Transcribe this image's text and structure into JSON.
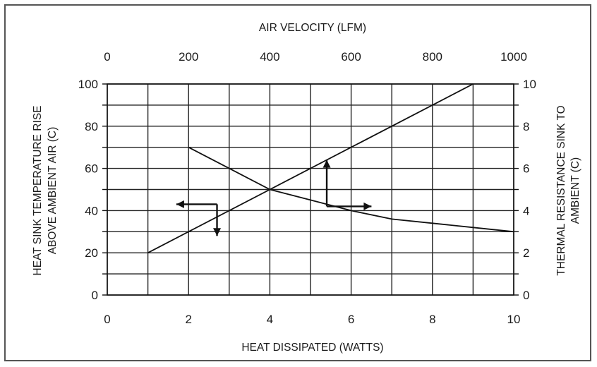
{
  "chart_data": {
    "type": "line",
    "x_bottom": {
      "label": "HEAT DISSIPATED (WATTS)",
      "range": [
        0,
        10
      ],
      "ticks": [
        0,
        2,
        4,
        6,
        8,
        10
      ]
    },
    "x_top": {
      "label": "AIR VELOCITY (LFM)",
      "range": [
        0,
        1000
      ],
      "ticks": [
        0,
        200,
        400,
        600,
        800,
        1000
      ]
    },
    "y_left": {
      "label_line1": "HEAT SINK TEMPERATURE RISE",
      "label_line2": "ABOVE AMBIENT AIR (C)",
      "range": [
        0,
        100
      ],
      "ticks": [
        0,
        20,
        40,
        60,
        80,
        100
      ]
    },
    "y_right": {
      "label_line1": "THERMAL RESISTANCE SINK TO",
      "label_line2": "AMBIENT (C)",
      "range": [
        0,
        10
      ],
      "ticks": [
        0,
        2,
        4,
        6,
        8,
        10
      ]
    },
    "grid": true,
    "series": [
      {
        "x_axis": "bottom",
        "y_axis": "left",
        "points": [
          [
            1,
            20
          ],
          [
            9,
            100
          ]
        ],
        "arrows": "points-left-and-down"
      },
      {
        "x_axis": "top",
        "y_axis": "right",
        "points": [
          [
            200,
            7.0
          ],
          [
            300,
            6.0
          ],
          [
            400,
            5.0
          ],
          [
            500,
            4.5
          ],
          [
            600,
            4.0
          ],
          [
            700,
            3.6
          ],
          [
            800,
            3.4
          ],
          [
            900,
            3.2
          ],
          [
            1000,
            3.0
          ]
        ],
        "arrows": "points-up-and-right"
      }
    ],
    "annotations": [
      {
        "type": "arrow-pair",
        "x": 2.7,
        "y": 43,
        "x_axis": "bottom",
        "y_axis": "left",
        "directions": [
          "left",
          "down"
        ],
        "length_x": 1.0,
        "length_y": 15
      },
      {
        "type": "arrow-pair",
        "x": 5.4,
        "y": 42,
        "x_axis": "bottom",
        "y_axis": "left",
        "directions": [
          "up",
          "right"
        ],
        "length_x": 1.1,
        "length_y": 22
      }
    ]
  }
}
